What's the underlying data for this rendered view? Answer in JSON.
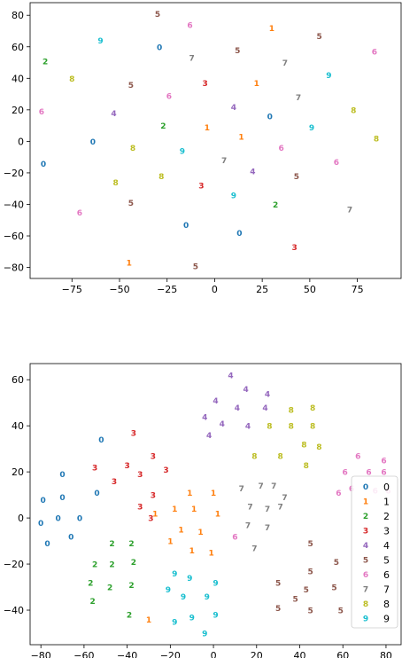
{
  "colors": [
    "#1f77b4",
    "#ff7f0e",
    "#2ca02c",
    "#d62728",
    "#9467bd",
    "#8c564b",
    "#e377c2",
    "#7f7f7f",
    "#bcbd22",
    "#17becf"
  ],
  "chart_data": [
    {
      "type": "scatter",
      "title": "",
      "xlabel": "",
      "ylabel": "",
      "xlim": [
        -97,
        98
      ],
      "ylim": [
        -87,
        88
      ],
      "xticks": [
        -75,
        -50,
        -25,
        0,
        25,
        50,
        75
      ],
      "yticks": [
        -80,
        -60,
        -40,
        -20,
        0,
        20,
        40,
        60,
        80
      ],
      "grid": false,
      "points": [
        {
          "x": -30,
          "y": 81,
          "label": "5"
        },
        {
          "x": -13,
          "y": 74,
          "label": "6"
        },
        {
          "x": 30,
          "y": 72,
          "label": "1"
        },
        {
          "x": 55,
          "y": 67,
          "label": "5"
        },
        {
          "x": -60,
          "y": 64,
          "label": "9"
        },
        {
          "x": -29,
          "y": 60,
          "label": "0"
        },
        {
          "x": 12,
          "y": 58,
          "label": "5"
        },
        {
          "x": 84,
          "y": 57,
          "label": "6"
        },
        {
          "x": -12,
          "y": 53,
          "label": "7"
        },
        {
          "x": 37,
          "y": 50,
          "label": "7"
        },
        {
          "x": -89,
          "y": 51,
          "label": "2"
        },
        {
          "x": -75,
          "y": 40,
          "label": "8"
        },
        {
          "x": 60,
          "y": 42,
          "label": "9"
        },
        {
          "x": -44,
          "y": 36,
          "label": "5"
        },
        {
          "x": -5,
          "y": 37,
          "label": "3"
        },
        {
          "x": 22,
          "y": 37,
          "label": "1"
        },
        {
          "x": -24,
          "y": 29,
          "label": "6"
        },
        {
          "x": 44,
          "y": 28,
          "label": "7"
        },
        {
          "x": 10,
          "y": 22,
          "label": "4"
        },
        {
          "x": 73,
          "y": 20,
          "label": "8"
        },
        {
          "x": -91,
          "y": 19,
          "label": "6"
        },
        {
          "x": -53,
          "y": 18,
          "label": "4"
        },
        {
          "x": 29,
          "y": 16,
          "label": "0"
        },
        {
          "x": -27,
          "y": 10,
          "label": "2"
        },
        {
          "x": -4,
          "y": 9,
          "label": "1"
        },
        {
          "x": 51,
          "y": 9,
          "label": "9"
        },
        {
          "x": -64,
          "y": 0,
          "label": "0"
        },
        {
          "x": 14,
          "y": 3,
          "label": "1"
        },
        {
          "x": 85,
          "y": 2,
          "label": "8"
        },
        {
          "x": -43,
          "y": -4,
          "label": "8"
        },
        {
          "x": -17,
          "y": -6,
          "label": "9"
        },
        {
          "x": 35,
          "y": -4,
          "label": "6"
        },
        {
          "x": -90,
          "y": -14,
          "label": "0"
        },
        {
          "x": 5,
          "y": -12,
          "label": "7"
        },
        {
          "x": 64,
          "y": -13,
          "label": "6"
        },
        {
          "x": 20,
          "y": -19,
          "label": "4"
        },
        {
          "x": -28,
          "y": -22,
          "label": "8"
        },
        {
          "x": 43,
          "y": -22,
          "label": "5"
        },
        {
          "x": -52,
          "y": -26,
          "label": "8"
        },
        {
          "x": -7,
          "y": -28,
          "label": "3"
        },
        {
          "x": 10,
          "y": -34,
          "label": "9"
        },
        {
          "x": -44,
          "y": -39,
          "label": "5"
        },
        {
          "x": 32,
          "y": -40,
          "label": "2"
        },
        {
          "x": 71,
          "y": -43,
          "label": "7"
        },
        {
          "x": -71,
          "y": -45,
          "label": "6"
        },
        {
          "x": -15,
          "y": -53,
          "label": "0"
        },
        {
          "x": 13,
          "y": -58,
          "label": "0"
        },
        {
          "x": 42,
          "y": -67,
          "label": "3"
        },
        {
          "x": -45,
          "y": -77,
          "label": "1"
        },
        {
          "x": -10,
          "y": -79,
          "label": "5"
        }
      ]
    },
    {
      "type": "scatter",
      "title": "",
      "xlabel": "",
      "ylabel": "",
      "xlim": [
        -85,
        87
      ],
      "ylim": [
        -55,
        67
      ],
      "xticks": [
        -80,
        -60,
        -40,
        -20,
        0,
        20,
        40,
        60,
        80
      ],
      "yticks": [
        -40,
        -20,
        0,
        20,
        40,
        60
      ],
      "grid": false,
      "legend": {
        "position": "lower-right",
        "entries": [
          "0",
          "1",
          "2",
          "3",
          "4",
          "5",
          "6",
          "7",
          "8",
          "9"
        ]
      },
      "points": [
        {
          "x": -52,
          "y": 34,
          "label": "0"
        },
        {
          "x": -70,
          "y": 19,
          "label": "0"
        },
        {
          "x": -79,
          "y": 8,
          "label": "0"
        },
        {
          "x": -70,
          "y": 9,
          "label": "0"
        },
        {
          "x": -54,
          "y": 11,
          "label": "0"
        },
        {
          "x": -80,
          "y": -2,
          "label": "0"
        },
        {
          "x": -72,
          "y": 0,
          "label": "0"
        },
        {
          "x": -62,
          "y": 0,
          "label": "0"
        },
        {
          "x": -66,
          "y": -8,
          "label": "0"
        },
        {
          "x": -77,
          "y": -11,
          "label": "0"
        },
        {
          "x": -11,
          "y": 11,
          "label": "1"
        },
        {
          "x": 0,
          "y": 11,
          "label": "1"
        },
        {
          "x": -27,
          "y": 2,
          "label": "1"
        },
        {
          "x": -18,
          "y": 4,
          "label": "1"
        },
        {
          "x": -9,
          "y": 4,
          "label": "1"
        },
        {
          "x": 2,
          "y": 2,
          "label": "1"
        },
        {
          "x": -15,
          "y": -5,
          "label": "1"
        },
        {
          "x": -6,
          "y": -6,
          "label": "1"
        },
        {
          "x": -20,
          "y": -10,
          "label": "1"
        },
        {
          "x": -10,
          "y": -14,
          "label": "1"
        },
        {
          "x": -1,
          "y": -15,
          "label": "1"
        },
        {
          "x": -30,
          "y": -44,
          "label": "1"
        },
        {
          "x": -47,
          "y": -11,
          "label": "2"
        },
        {
          "x": -38,
          "y": -11,
          "label": "2"
        },
        {
          "x": -55,
          "y": -20,
          "label": "2"
        },
        {
          "x": -47,
          "y": -20,
          "label": "2"
        },
        {
          "x": -37,
          "y": -19,
          "label": "2"
        },
        {
          "x": -57,
          "y": -28,
          "label": "2"
        },
        {
          "x": -48,
          "y": -30,
          "label": "2"
        },
        {
          "x": -38,
          "y": -29,
          "label": "2"
        },
        {
          "x": -56,
          "y": -36,
          "label": "2"
        },
        {
          "x": -39,
          "y": -42,
          "label": "2"
        },
        {
          "x": -37,
          "y": 37,
          "label": "3"
        },
        {
          "x": -55,
          "y": 22,
          "label": "3"
        },
        {
          "x": -40,
          "y": 23,
          "label": "3"
        },
        {
          "x": -28,
          "y": 27,
          "label": "3"
        },
        {
          "x": -46,
          "y": 16,
          "label": "3"
        },
        {
          "x": -34,
          "y": 19,
          "label": "3"
        },
        {
          "x": -22,
          "y": 21,
          "label": "3"
        },
        {
          "x": -28,
          "y": 10,
          "label": "3"
        },
        {
          "x": -34,
          "y": 5,
          "label": "3"
        },
        {
          "x": -29,
          "y": 0,
          "label": "3"
        },
        {
          "x": 8,
          "y": 62,
          "label": "4"
        },
        {
          "x": 15,
          "y": 56,
          "label": "4"
        },
        {
          "x": 25,
          "y": 54,
          "label": "4"
        },
        {
          "x": 1,
          "y": 51,
          "label": "4"
        },
        {
          "x": 11,
          "y": 48,
          "label": "4"
        },
        {
          "x": 24,
          "y": 48,
          "label": "4"
        },
        {
          "x": -4,
          "y": 44,
          "label": "4"
        },
        {
          "x": 4,
          "y": 41,
          "label": "4"
        },
        {
          "x": 16,
          "y": 40,
          "label": "4"
        },
        {
          "x": -2,
          "y": 36,
          "label": "4"
        },
        {
          "x": 45,
          "y": -11,
          "label": "5"
        },
        {
          "x": 57,
          "y": -19,
          "label": "5"
        },
        {
          "x": 45,
          "y": -23,
          "label": "5"
        },
        {
          "x": 30,
          "y": -28,
          "label": "5"
        },
        {
          "x": 43,
          "y": -31,
          "label": "5"
        },
        {
          "x": 56,
          "y": -30,
          "label": "5"
        },
        {
          "x": 38,
          "y": -35,
          "label": "5"
        },
        {
          "x": 30,
          "y": -39,
          "label": "5"
        },
        {
          "x": 45,
          "y": -40,
          "label": "5"
        },
        {
          "x": 59,
          "y": -40,
          "label": "5"
        },
        {
          "x": 67,
          "y": 27,
          "label": "6"
        },
        {
          "x": 79,
          "y": 25,
          "label": "6"
        },
        {
          "x": 61,
          "y": 20,
          "label": "6"
        },
        {
          "x": 72,
          "y": 20,
          "label": "6"
        },
        {
          "x": 79,
          "y": 20,
          "label": "6"
        },
        {
          "x": 64,
          "y": 13,
          "label": "6"
        },
        {
          "x": 58,
          "y": 11,
          "label": "6"
        },
        {
          "x": 75,
          "y": 12,
          "label": "6"
        },
        {
          "x": 81,
          "y": 12,
          "label": "6"
        },
        {
          "x": 10,
          "y": -8,
          "label": "6"
        },
        {
          "x": 13,
          "y": 13,
          "label": "7"
        },
        {
          "x": 22,
          "y": 14,
          "label": "7"
        },
        {
          "x": 28,
          "y": 14,
          "label": "7"
        },
        {
          "x": 33,
          "y": 9,
          "label": "7"
        },
        {
          "x": 17,
          "y": 5,
          "label": "7"
        },
        {
          "x": 25,
          "y": 4,
          "label": "7"
        },
        {
          "x": 31,
          "y": 5,
          "label": "7"
        },
        {
          "x": 16,
          "y": -3,
          "label": "7"
        },
        {
          "x": 25,
          "y": -4,
          "label": "7"
        },
        {
          "x": 19,
          "y": -13,
          "label": "7"
        },
        {
          "x": 36,
          "y": 47,
          "label": "8"
        },
        {
          "x": 46,
          "y": 48,
          "label": "8"
        },
        {
          "x": 26,
          "y": 40,
          "label": "8"
        },
        {
          "x": 36,
          "y": 40,
          "label": "8"
        },
        {
          "x": 46,
          "y": 40,
          "label": "8"
        },
        {
          "x": 42,
          "y": 32,
          "label": "8"
        },
        {
          "x": 49,
          "y": 31,
          "label": "8"
        },
        {
          "x": 19,
          "y": 27,
          "label": "8"
        },
        {
          "x": 31,
          "y": 27,
          "label": "8"
        },
        {
          "x": 43,
          "y": 23,
          "label": "8"
        },
        {
          "x": -18,
          "y": -24,
          "label": "9"
        },
        {
          "x": -11,
          "y": -26,
          "label": "9"
        },
        {
          "x": 1,
          "y": -28,
          "label": "9"
        },
        {
          "x": -21,
          "y": -31,
          "label": "9"
        },
        {
          "x": -14,
          "y": -34,
          "label": "9"
        },
        {
          "x": -3,
          "y": -34,
          "label": "9"
        },
        {
          "x": -10,
          "y": -43,
          "label": "9"
        },
        {
          "x": 1,
          "y": -42,
          "label": "9"
        },
        {
          "x": -18,
          "y": -45,
          "label": "9"
        },
        {
          "x": -4,
          "y": -50,
          "label": "9"
        }
      ]
    }
  ]
}
